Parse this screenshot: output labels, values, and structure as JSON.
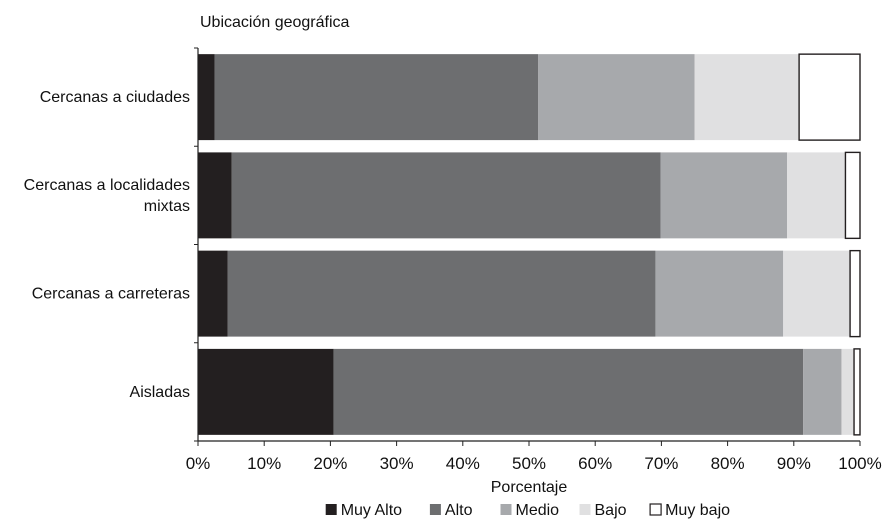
{
  "chart_data": {
    "type": "bar",
    "orientation": "horizontal",
    "stacked": true,
    "normalized": true,
    "title": "Ubicación geográfica",
    "xlabel": "Porcentaje",
    "ylabel": "",
    "xlim": [
      0,
      100
    ],
    "x_ticks": [
      "0%",
      "10%",
      "20%",
      "30%",
      "40%",
      "50%",
      "60%",
      "70%",
      "80%",
      "90%",
      "100%"
    ],
    "grid": false,
    "legend_position": "bottom",
    "categories": [
      "Cercanas a ciudades",
      "Cercanas a localidades mixtas",
      "Cercanas a carreteras",
      "Aisladas"
    ],
    "category_lines": [
      [
        "Cercanas a ciudades"
      ],
      [
        "Cercanas a localidades",
        "mixtas"
      ],
      [
        "Cercanas a carreteras"
      ],
      [
        "Aisladas"
      ]
    ],
    "series": [
      {
        "name": "Muy Alto",
        "color": "#231f20",
        "values": [
          2.5,
          5.1,
          4.5,
          20.5
        ]
      },
      {
        "name": "Alto",
        "color": "#6d6e70",
        "values": [
          48.9,
          64.8,
          64.6,
          70.9
        ]
      },
      {
        "name": "Medio",
        "color": "#a7a9ac",
        "values": [
          23.6,
          19.1,
          19.3,
          5.8
        ]
      },
      {
        "name": "Bajo",
        "color": "#e0e0e1",
        "values": [
          15.8,
          8.8,
          10.1,
          1.9
        ]
      },
      {
        "name": "Muy bajo",
        "color": "#ffffff",
        "values": [
          9.2,
          2.2,
          1.5,
          0.9
        ]
      }
    ]
  }
}
